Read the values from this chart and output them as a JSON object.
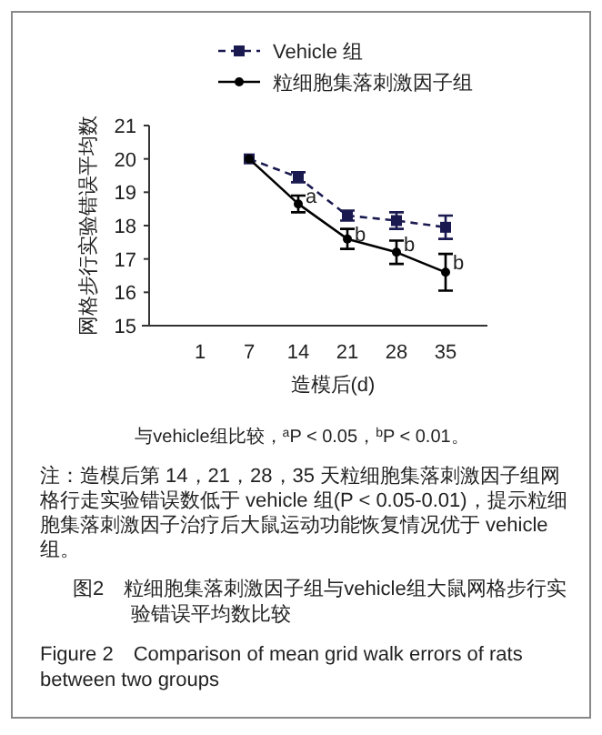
{
  "chart_data": {
    "type": "line",
    "title": "图2　粒细胞集落刺激因子组与vehicle组大鼠网格步行实验错误平均数比较",
    "subtitle": "Figure 2　Comparison of mean grid walk errors of rats between two groups",
    "xlabel": "造模后(d)",
    "ylabel": "网格步行实验错误平均数",
    "categories": [
      "1",
      "7",
      "14",
      "21",
      "28",
      "35"
    ],
    "series": [
      {
        "name": "Vehicle 组",
        "color": "#1a1a50",
        "marker": "square",
        "line_style": "dashed",
        "values": [
          null,
          20,
          19.45,
          18.3,
          18.15,
          17.95
        ],
        "errors": [
          null,
          null,
          0.15,
          0.15,
          0.25,
          0.35
        ]
      },
      {
        "name": "粒细胞集落刺激因子组",
        "color": "#000000",
        "marker": "circle",
        "line_style": "solid",
        "values": [
          null,
          20,
          18.65,
          17.6,
          17.2,
          16.6
        ],
        "errors": [
          null,
          null,
          0.25,
          0.3,
          0.35,
          0.55
        ]
      }
    ],
    "ylim": [
      15,
      21
    ],
    "yticks": [
      15,
      16,
      17,
      18,
      19,
      20,
      21
    ],
    "grid": false,
    "legend": "top",
    "annotations": [
      {
        "text": "a",
        "x": "14",
        "y": 18.9
      },
      {
        "text": "b",
        "x": "21",
        "y": 17.75
      },
      {
        "text": "b",
        "x": "28",
        "y": 17.45
      },
      {
        "text": "b",
        "x": "35",
        "y": 16.9
      },
      "与vehicle组比较，$^{a}$P < 0.05，$^{b}$P < 0.01。",
      "注：造模后第 14，21，28，35 天粒细胞集落刺激因子组网格行走实验错误数低于 vehicle 组(P < 0.05-0.01)，提示粒细胞集落刺激因子治疗后大鼠运动功能恢复情况优于 vehicle 组。"
    ]
  }
}
